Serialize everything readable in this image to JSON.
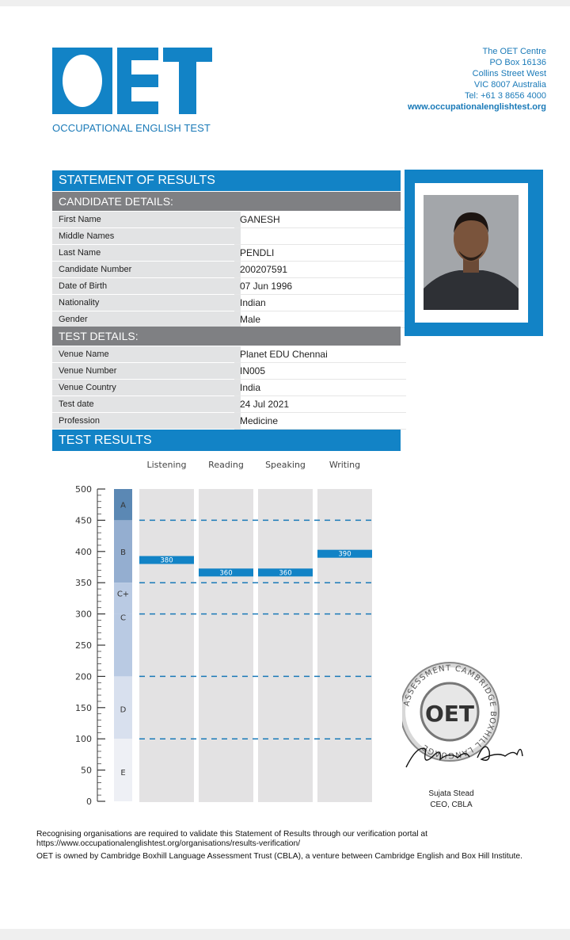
{
  "header": {
    "logo_text": "OET",
    "logo_subtitle": "OCCUPATIONAL ENGLISH TEST",
    "address": [
      "The OET Centre",
      "PO Box 16136",
      "Collins Street West",
      "VIC 8007 Australia",
      "Tel: +61 3 8656 4000"
    ],
    "website": "www.occupationalenglishtest.org"
  },
  "statement_title": "STATEMENT OF RESULTS",
  "candidate": {
    "heading": "CANDIDATE DETAILS:",
    "rows": [
      {
        "label": "First Name",
        "value": "GANESH"
      },
      {
        "label": "Middle Names",
        "value": ""
      },
      {
        "label": "Last Name",
        "value": "PENDLI"
      },
      {
        "label": "Candidate Number",
        "value": "200207591"
      },
      {
        "label": "Date of Birth",
        "value": "07 Jun 1996"
      },
      {
        "label": "Nationality",
        "value": "Indian"
      },
      {
        "label": "Gender",
        "value": "Male"
      }
    ]
  },
  "test": {
    "heading": "TEST DETAILS:",
    "rows": [
      {
        "label": "Venue Name",
        "value": "Planet EDU Chennai"
      },
      {
        "label": "Venue Number",
        "value": "IN005"
      },
      {
        "label": "Venue Country",
        "value": "India"
      },
      {
        "label": "Test date",
        "value": "24 Jul 2021"
      },
      {
        "label": "Profession",
        "value": "Medicine"
      }
    ]
  },
  "results_heading": "TEST RESULTS",
  "chart_data": {
    "type": "bar",
    "categories": [
      "Listening",
      "Reading",
      "Speaking",
      "Writing"
    ],
    "values": [
      380,
      360,
      360,
      390
    ],
    "ylim": [
      0,
      500
    ],
    "yticks": [
      0,
      50,
      100,
      150,
      200,
      250,
      300,
      350,
      400,
      450,
      500
    ],
    "grade_bands": [
      {
        "grade": "A",
        "min": 450,
        "max": 500,
        "color": "#5b88b4"
      },
      {
        "grade": "B",
        "min": 350,
        "max": 450,
        "color": "#94aed0"
      },
      {
        "grade": "C+",
        "min": 300,
        "max": 350,
        "color": "#b9cae3"
      },
      {
        "grade": "C",
        "min": 200,
        "max": 300,
        "color": "#b9cae3"
      },
      {
        "grade": "D",
        "min": 100,
        "max": 200,
        "color": "#d8e0ee"
      },
      {
        "grade": "E",
        "min": 0,
        "max": 100,
        "color": "#eef0f5"
      }
    ],
    "grade_label_values": {
      "A": 475,
      "B": 400,
      "C+": 333,
      "C": 295,
      "D": 148,
      "E": 47
    },
    "threshold_lines": [
      450,
      350,
      300,
      200,
      100
    ],
    "bar_color": "#1283c6",
    "column_color": "#e3e2e3"
  },
  "stamp": {
    "center": "OET",
    "ring": "ASSESSMENT CAMBRIDGE BOXHILL LANGUAGE"
  },
  "signatory": {
    "name": "Sujata Stead",
    "title": "CEO, CBLA"
  },
  "footer": {
    "line1": "Recognising organisations are required to validate this Statement of Results through our verification portal at",
    "line2": "https://www.occupationalenglishtest.org/organisations/results-verification/",
    "line3": "OET is owned by Cambridge Boxhill Language Assessment Trust (CBLA), a venture between Cambridge English and Box Hill Institute."
  }
}
